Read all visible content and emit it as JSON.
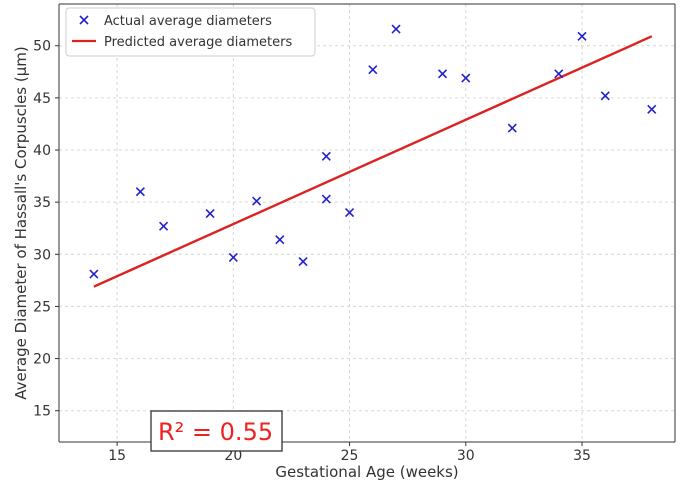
{
  "chart_data": {
    "type": "scatter",
    "xlabel": "Gestational Age (weeks)",
    "ylabel": "Average Diameter of Hassall's Corpuscles (μm)",
    "xlim": [
      12.5,
      39
    ],
    "ylim": [
      12,
      54
    ],
    "xticks": [
      15,
      20,
      25,
      30,
      35
    ],
    "yticks": [
      15,
      20,
      25,
      30,
      35,
      40,
      45,
      50
    ],
    "grid": true,
    "legend_position": "top-left",
    "series": [
      {
        "name": "Actual average diameters",
        "kind": "scatter",
        "marker": "x",
        "color": "#2222cc",
        "x": [
          14,
          16,
          17,
          19,
          20,
          21,
          22,
          23,
          24,
          24,
          25,
          26,
          27,
          29,
          30,
          32,
          34,
          35,
          36,
          38
        ],
        "y": [
          28.1,
          36.0,
          32.7,
          33.9,
          29.7,
          35.1,
          31.4,
          29.3,
          39.4,
          35.3,
          34.0,
          47.7,
          51.6,
          47.3,
          46.9,
          42.1,
          47.3,
          50.9,
          45.2,
          43.9
        ]
      },
      {
        "name": "Predicted average diameters",
        "kind": "line",
        "color": "#dd2222",
        "x": [
          14,
          38
        ],
        "y": [
          26.9,
          50.9
        ]
      }
    ],
    "annotation": {
      "text": "R² = 0.55",
      "color": "#ee2222"
    }
  }
}
